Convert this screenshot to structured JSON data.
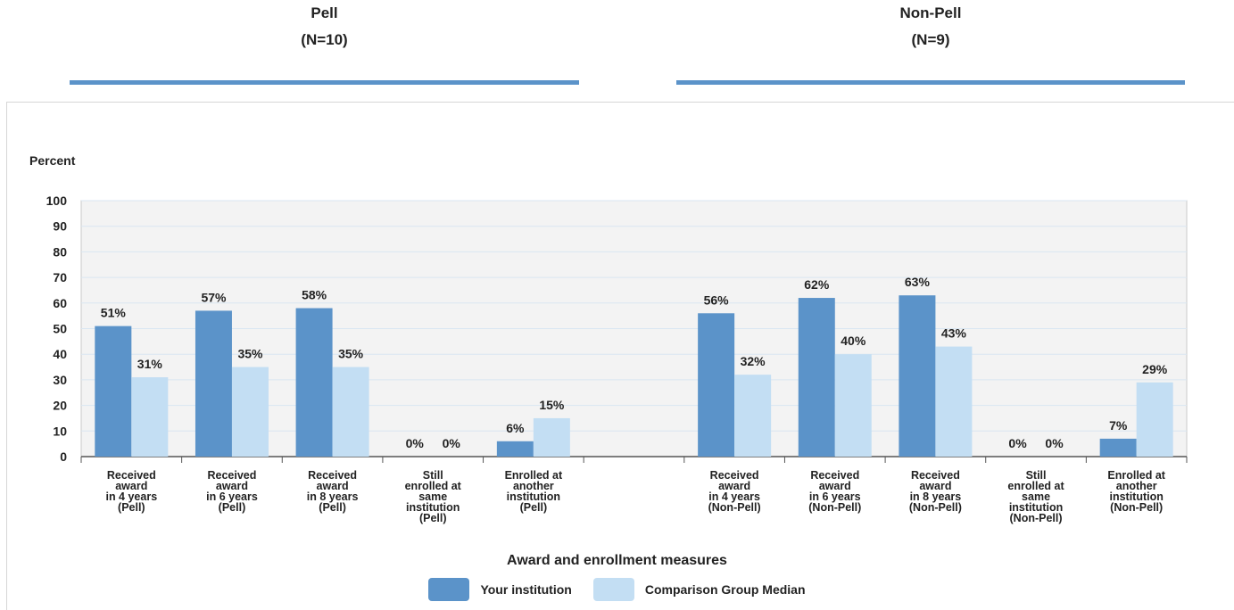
{
  "groups": [
    {
      "title": "Pell",
      "n": "(N=10)"
    },
    {
      "title": "Non-Pell",
      "n": "(N=9)"
    }
  ],
  "chart_data": {
    "type": "bar",
    "ylabel": "Percent",
    "xlabel": "Award and enrollment measures",
    "ylim": [
      0,
      100
    ],
    "yticks": [
      0,
      10,
      20,
      30,
      40,
      50,
      60,
      70,
      80,
      90,
      100
    ],
    "grid": true,
    "legend_position": "bottom",
    "categories": [
      "Received award in 4 years (Pell)",
      "Received award in 6 years (Pell)",
      "Received award in 8 years (Pell)",
      "Still enrolled at same institution (Pell)",
      "Enrolled at another institution (Pell)",
      "",
      "Received award in 4 years (Non-Pell)",
      "Received award in 6 years (Non-Pell)",
      "Received award in 8 years (Non-Pell)",
      "Still enrolled at same institution (Non-Pell)",
      "Enrolled at another institution (Non-Pell)"
    ],
    "category_label_lines": [
      [
        "Received",
        "award",
        "in 4 years",
        "(Pell)"
      ],
      [
        "Received",
        "award",
        "in 6 years",
        "(Pell)"
      ],
      [
        "Received",
        "award",
        "in 8 years",
        "(Pell)"
      ],
      [
        "Still",
        "enrolled at",
        "same",
        "institution",
        "(Pell)"
      ],
      [
        "Enrolled at",
        "another",
        "institution",
        "(Pell)"
      ],
      [],
      [
        "Received",
        "award",
        "in 4 years",
        "(Non-Pell)"
      ],
      [
        "Received",
        "award",
        "in 6 years",
        "(Non-Pell)"
      ],
      [
        "Received",
        "award",
        "in 8 years",
        "(Non-Pell)"
      ],
      [
        "Still",
        "enrolled at",
        "same",
        "institution",
        "(Non-Pell)"
      ],
      [
        "Enrolled at",
        "another",
        "institution",
        "(Non-Pell)"
      ]
    ],
    "series": [
      {
        "name": "Your institution",
        "color": "#5b93c9",
        "values": [
          51,
          57,
          58,
          0,
          6,
          null,
          56,
          62,
          63,
          0,
          7
        ]
      },
      {
        "name": "Comparison Group Median",
        "color": "#c3def3",
        "values": [
          31,
          35,
          35,
          0,
          15,
          null,
          32,
          40,
          43,
          0,
          29
        ]
      }
    ],
    "value_suffix": "%"
  }
}
